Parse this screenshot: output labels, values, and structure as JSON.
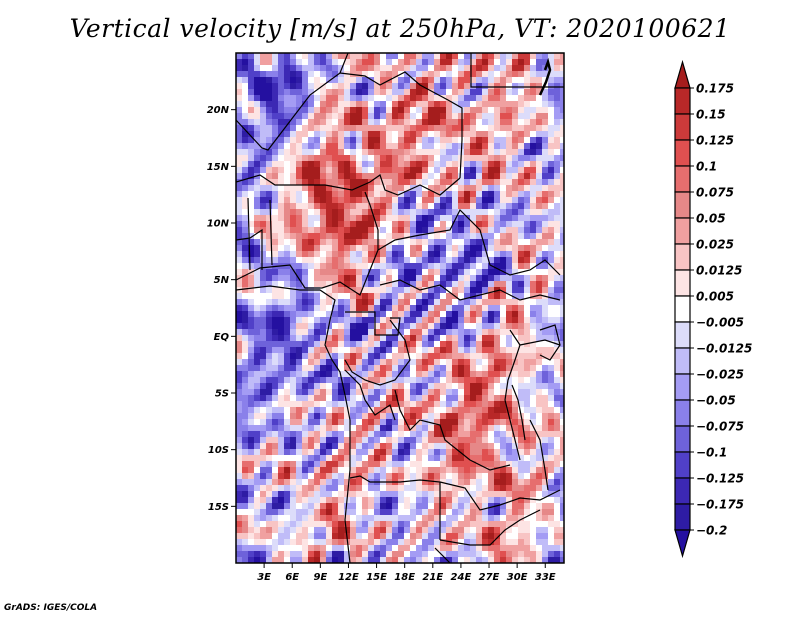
{
  "title": "Vertical velocity [m/s] at 250hPa, VT: 2020100621",
  "footer": "GrADS: IGES/COLA",
  "chart_data": {
    "type": "heatmap",
    "title": "Vertical velocity [m/s] at 250hPa, VT: 2020100621",
    "variable": "Vertical velocity",
    "units": "m/s",
    "level": "250hPa",
    "valid_time": "2020100621",
    "lon_range": [
      0,
      35
    ],
    "lat_range": [
      -20,
      25
    ],
    "x_ticks": [
      "3E",
      "6E",
      "9E",
      "12E",
      "15E",
      "18E",
      "21E",
      "24E",
      "27E",
      "30E",
      "33E"
    ],
    "x_tick_values": [
      3,
      6,
      9,
      12,
      15,
      18,
      21,
      24,
      27,
      30,
      33
    ],
    "y_ticks": [
      "20N",
      "15N",
      "10N",
      "5N",
      "EQ",
      "5S",
      "10S",
      "15S"
    ],
    "y_tick_values": [
      20,
      15,
      10,
      5,
      0,
      -5,
      -10,
      -15
    ],
    "colorbar": {
      "labels": [
        "0.175",
        "0.15",
        "0.125",
        "0.1",
        "0.075",
        "0.05",
        "0.025",
        "0.0125",
        "0.005",
        "−0.005",
        "−0.0125",
        "−0.025",
        "−0.05",
        "−0.075",
        "−0.1",
        "−0.125",
        "−0.175",
        "−0.2"
      ],
      "levels": [
        0.175,
        0.15,
        0.125,
        0.1,
        0.075,
        0.05,
        0.025,
        0.0125,
        0.005,
        -0.005,
        -0.0125,
        -0.025,
        -0.05,
        -0.075,
        -0.1,
        -0.125,
        -0.175,
        -0.2
      ],
      "colors": [
        "#a51d1d",
        "#b82828",
        "#cc3a3a",
        "#e05050",
        "#e66e6e",
        "#e68888",
        "#f0a0a0",
        "#f8c4c4",
        "#fde4e4",
        "#ffffff",
        "#dcdcfa",
        "#c0bcf8",
        "#a49cf4",
        "#8a80ea",
        "#6e62da",
        "#5040c8",
        "#3c28b4",
        "#2e1ca4",
        "#2410a0"
      ],
      "extend": "both"
    },
    "grid": false,
    "legend_placement": "right"
  }
}
